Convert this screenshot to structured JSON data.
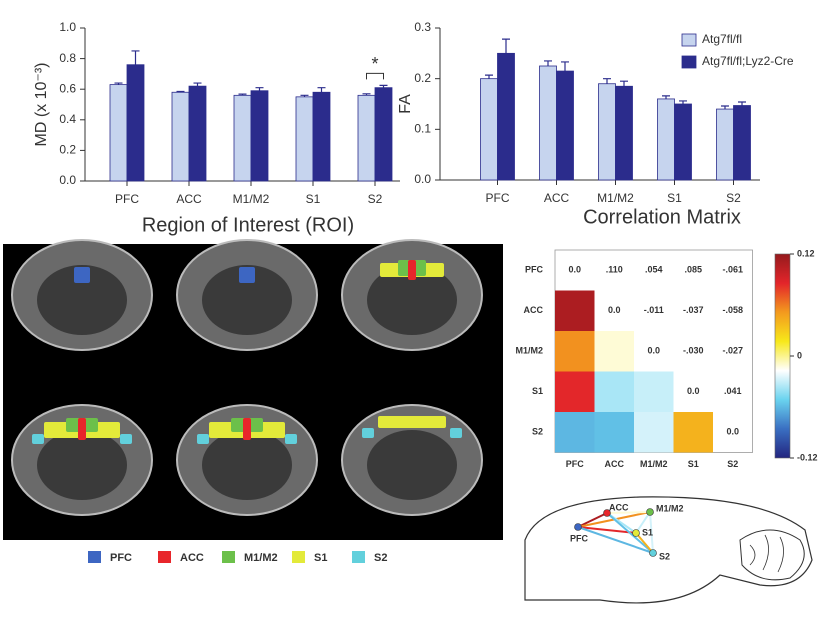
{
  "chart_data": [
    {
      "type": "bar",
      "ylabel": "MD (x 10⁻³)",
      "categories": [
        "PFC",
        "ACC",
        "M1/M2",
        "S1",
        "S2"
      ],
      "series": [
        {
          "color": "#c6d4ee",
          "values": [
            0.63,
            0.58,
            0.56,
            0.55,
            0.56
          ],
          "errors": [
            0.01,
            0.005,
            0.008,
            0.01,
            0.01
          ]
        },
        {
          "color": "#2b2c8c",
          "values": [
            0.76,
            0.62,
            0.59,
            0.58,
            0.61
          ],
          "errors": [
            0.09,
            0.02,
            0.02,
            0.03,
            0.015
          ]
        }
      ],
      "ylim": [
        0,
        1
      ],
      "yticks": [
        {
          "value": 0,
          "label": "0.0"
        },
        0.2,
        0.4,
        0.6,
        0.8,
        {
          "value": 1,
          "label": "1.0"
        }
      ],
      "annotation": "*"
    },
    {
      "type": "bar",
      "ylabel": "FA",
      "categories": [
        "PFC",
        "ACC",
        "M1/M2",
        "S1",
        "S2"
      ],
      "series": [
        {
          "name": "Atg7fl/fl",
          "color": "#c6d4ee",
          "values": [
            0.2,
            0.225,
            0.19,
            0.16,
            0.14
          ],
          "errors": [
            0.007,
            0.01,
            0.01,
            0.006,
            0.006
          ]
        },
        {
          "name": "Atg7fl/fl;Lyz2-Cre",
          "color": "#2b2c8c",
          "values": [
            0.25,
            0.215,
            0.185,
            0.15,
            0.147
          ],
          "errors": [
            0.028,
            0.018,
            0.01,
            0.006,
            0.007
          ]
        }
      ],
      "ylim": [
        0,
        0.3
      ],
      "yticks": [
        {
          "value": 0,
          "label": "0.0"
        },
        0.1,
        0.2,
        0.3
      ],
      "legend": "top-right"
    },
    {
      "type": "heatmap",
      "title": "Correlation Matrix",
      "labels": [
        "PFC",
        "ACC",
        "M1/M2",
        "S1",
        "S2"
      ],
      "values": [
        [
          0,
          0.11,
          0.054,
          0.085,
          -0.061
        ],
        [
          null,
          0,
          -0.011,
          -0.037,
          -0.058
        ],
        [
          null,
          null,
          0,
          -0.03,
          -0.027
        ],
        [
          null,
          null,
          null,
          0,
          0.041
        ],
        [
          null,
          null,
          null,
          null,
          0
        ]
      ],
      "value_labels": [
        [
          "0.0",
          ".110",
          ".054",
          ".085",
          "-.061"
        ],
        [
          null,
          "0.0",
          "-.011",
          "-.037",
          "-.058"
        ],
        [
          null,
          null,
          "0.0",
          "-.030",
          "-.027"
        ],
        [
          null,
          null,
          null,
          "0.0",
          ".041"
        ],
        [
          null,
          null,
          null,
          null,
          "0.0"
        ]
      ],
      "clim": [
        -0.12,
        0.12
      ],
      "cticks": [
        0.12,
        0,
        -0.12
      ],
      "colormap": [
        "#23257f",
        "#3a6fc2",
        "#6ad3ef",
        "#ffffff",
        "#f7e81a",
        "#f39a1e",
        "#e3252a",
        "#951a1d"
      ]
    }
  ],
  "roi": {
    "title": "Region of Interest (ROI)",
    "legend": [
      {
        "label": "PFC",
        "color": "#3d66c2"
      },
      {
        "label": "ACC",
        "color": "#e8262b"
      },
      {
        "label": "M1/M2",
        "color": "#6cc04a"
      },
      {
        "label": "S1",
        "color": "#e3ea3a"
      },
      {
        "label": "S2",
        "color": "#62d0dc"
      }
    ]
  },
  "network": {
    "nodes": [
      "PFC",
      "ACC",
      "M1/M2",
      "S1",
      "S2"
    ]
  }
}
